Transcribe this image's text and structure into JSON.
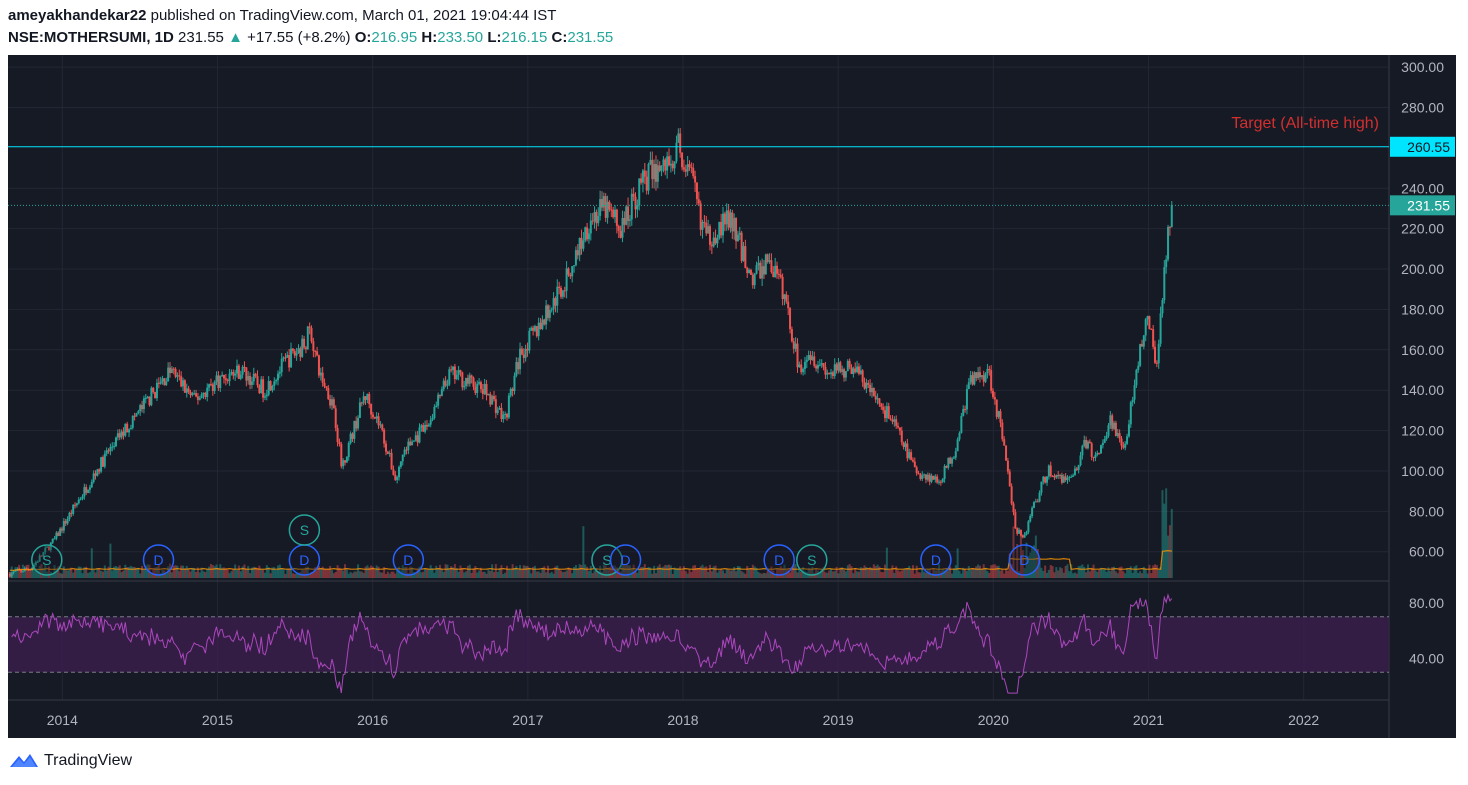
{
  "header": {
    "author": "ameyakhandekar22",
    "published_text": "published on TradingView.com, March 01, 2021 19:04:44 IST",
    "symbol": "NSE:MOTHERSUMI, 1D",
    "last": "231.55",
    "change": "+17.55 (+8.2%)",
    "open_label": "O:",
    "open": "216.95",
    "high_label": "H:",
    "high": "233.50",
    "low_label": "L:",
    "low": "216.15",
    "close_label": "C:",
    "close": "231.55"
  },
  "footer": {
    "brand": "TradingView"
  },
  "colors": {
    "background": "#161a25",
    "grid": "#232735",
    "up": "#26a69a",
    "down": "#ef5350",
    "target_line": "#00e5ff",
    "target_text": "#d32f2f",
    "rsi": "#ab47bc",
    "rsi_band": "#3b1e4d",
    "vol_ma": "#ff9800",
    "axis_text": "#b2b5be"
  },
  "chart_data": {
    "type": "candlestick",
    "annotation": {
      "text": "Target (All-time high)",
      "price": 260.55,
      "label": "260.55"
    },
    "last_price": {
      "price": 231.55,
      "label": "231.55"
    },
    "price_axis": {
      "ylim": [
        46,
        306
      ],
      "ticks": [
        "300.00",
        "280.00",
        "240.00",
        "220.00",
        "200.00",
        "180.00",
        "160.00",
        "140.00",
        "120.00",
        "100.00",
        "80.00",
        "60.00"
      ],
      "tick_values": [
        300,
        280,
        240,
        220,
        200,
        180,
        160,
        140,
        120,
        100,
        80,
        60
      ]
    },
    "time_axis": {
      "xlim": [
        2013.65,
        2022.55
      ],
      "ticks": [
        "2014",
        "2015",
        "2016",
        "2017",
        "2018",
        "2019",
        "2020",
        "2021",
        "2022"
      ],
      "tick_values": [
        2014,
        2015,
        2016,
        2017,
        2018,
        2019,
        2020,
        2021,
        2022
      ]
    },
    "price_path": {
      "x": [
        2013.65,
        2013.8,
        2013.95,
        2014.1,
        2014.3,
        2014.5,
        2014.7,
        2014.85,
        2015.0,
        2015.15,
        2015.3,
        2015.45,
        2015.55,
        2015.6,
        2015.65,
        2015.75,
        2015.8,
        2015.95,
        2016.05,
        2016.15,
        2016.2,
        2016.35,
        2016.5,
        2016.6,
        2016.75,
        2016.85,
        2016.95,
        2017.1,
        2017.25,
        2017.4,
        2017.5,
        2017.6,
        2017.75,
        2017.9,
        2017.97,
        2018.05,
        2018.15,
        2018.3,
        2018.45,
        2018.55,
        2018.65,
        2018.75,
        2018.8,
        2018.95,
        2019.1,
        2019.2,
        2019.35,
        2019.5,
        2019.65,
        2019.75,
        2019.85,
        2019.97,
        2020.05,
        2020.15,
        2020.2,
        2020.25,
        2020.35,
        2020.5,
        2020.6,
        2020.65,
        2020.75,
        2020.85,
        2020.95,
        2021.0,
        2021.05,
        2021.1,
        2021.15
      ],
      "y": [
        49,
        52,
        66,
        85,
        110,
        130,
        150,
        135,
        145,
        150,
        140,
        155,
        162,
        170,
        150,
        132,
        102,
        138,
        122,
        95,
        110,
        122,
        148,
        145,
        138,
        125,
        158,
        175,
        195,
        225,
        230,
        220,
        245,
        252,
        260,
        245,
        215,
        225,
        195,
        205,
        188,
        150,
        160,
        148,
        152,
        140,
        125,
        100,
        95,
        110,
        145,
        150,
        120,
        70,
        68,
        80,
        100,
        95,
        115,
        105,
        125,
        112,
        165,
        175,
        150,
        200,
        231.55
      ]
    },
    "rsi": {
      "levels": [
        70,
        30
      ],
      "ticks": [
        "80.00",
        "40.00"
      ],
      "tick_values": [
        80,
        40
      ],
      "ylim": [
        10,
        95
      ]
    },
    "event_markers": [
      {
        "label": "S",
        "x": 2013.9,
        "kind": "split"
      },
      {
        "label": "D",
        "x": 2014.62,
        "kind": "dividend"
      },
      {
        "label": "D",
        "x": 2015.56,
        "kind": "dividend"
      },
      {
        "label": "S",
        "x": 2015.56,
        "kind": "split"
      },
      {
        "label": "D",
        "x": 2016.23,
        "kind": "dividend"
      },
      {
        "label": "S",
        "x": 2017.51,
        "kind": "split"
      },
      {
        "label": "D",
        "x": 2017.63,
        "kind": "dividend"
      },
      {
        "label": "D",
        "x": 2018.62,
        "kind": "dividend"
      },
      {
        "label": "S",
        "x": 2018.83,
        "kind": "split"
      },
      {
        "label": "D",
        "x": 2019.63,
        "kind": "dividend"
      },
      {
        "label": "D",
        "x": 2020.2,
        "kind": "dividend"
      }
    ]
  }
}
